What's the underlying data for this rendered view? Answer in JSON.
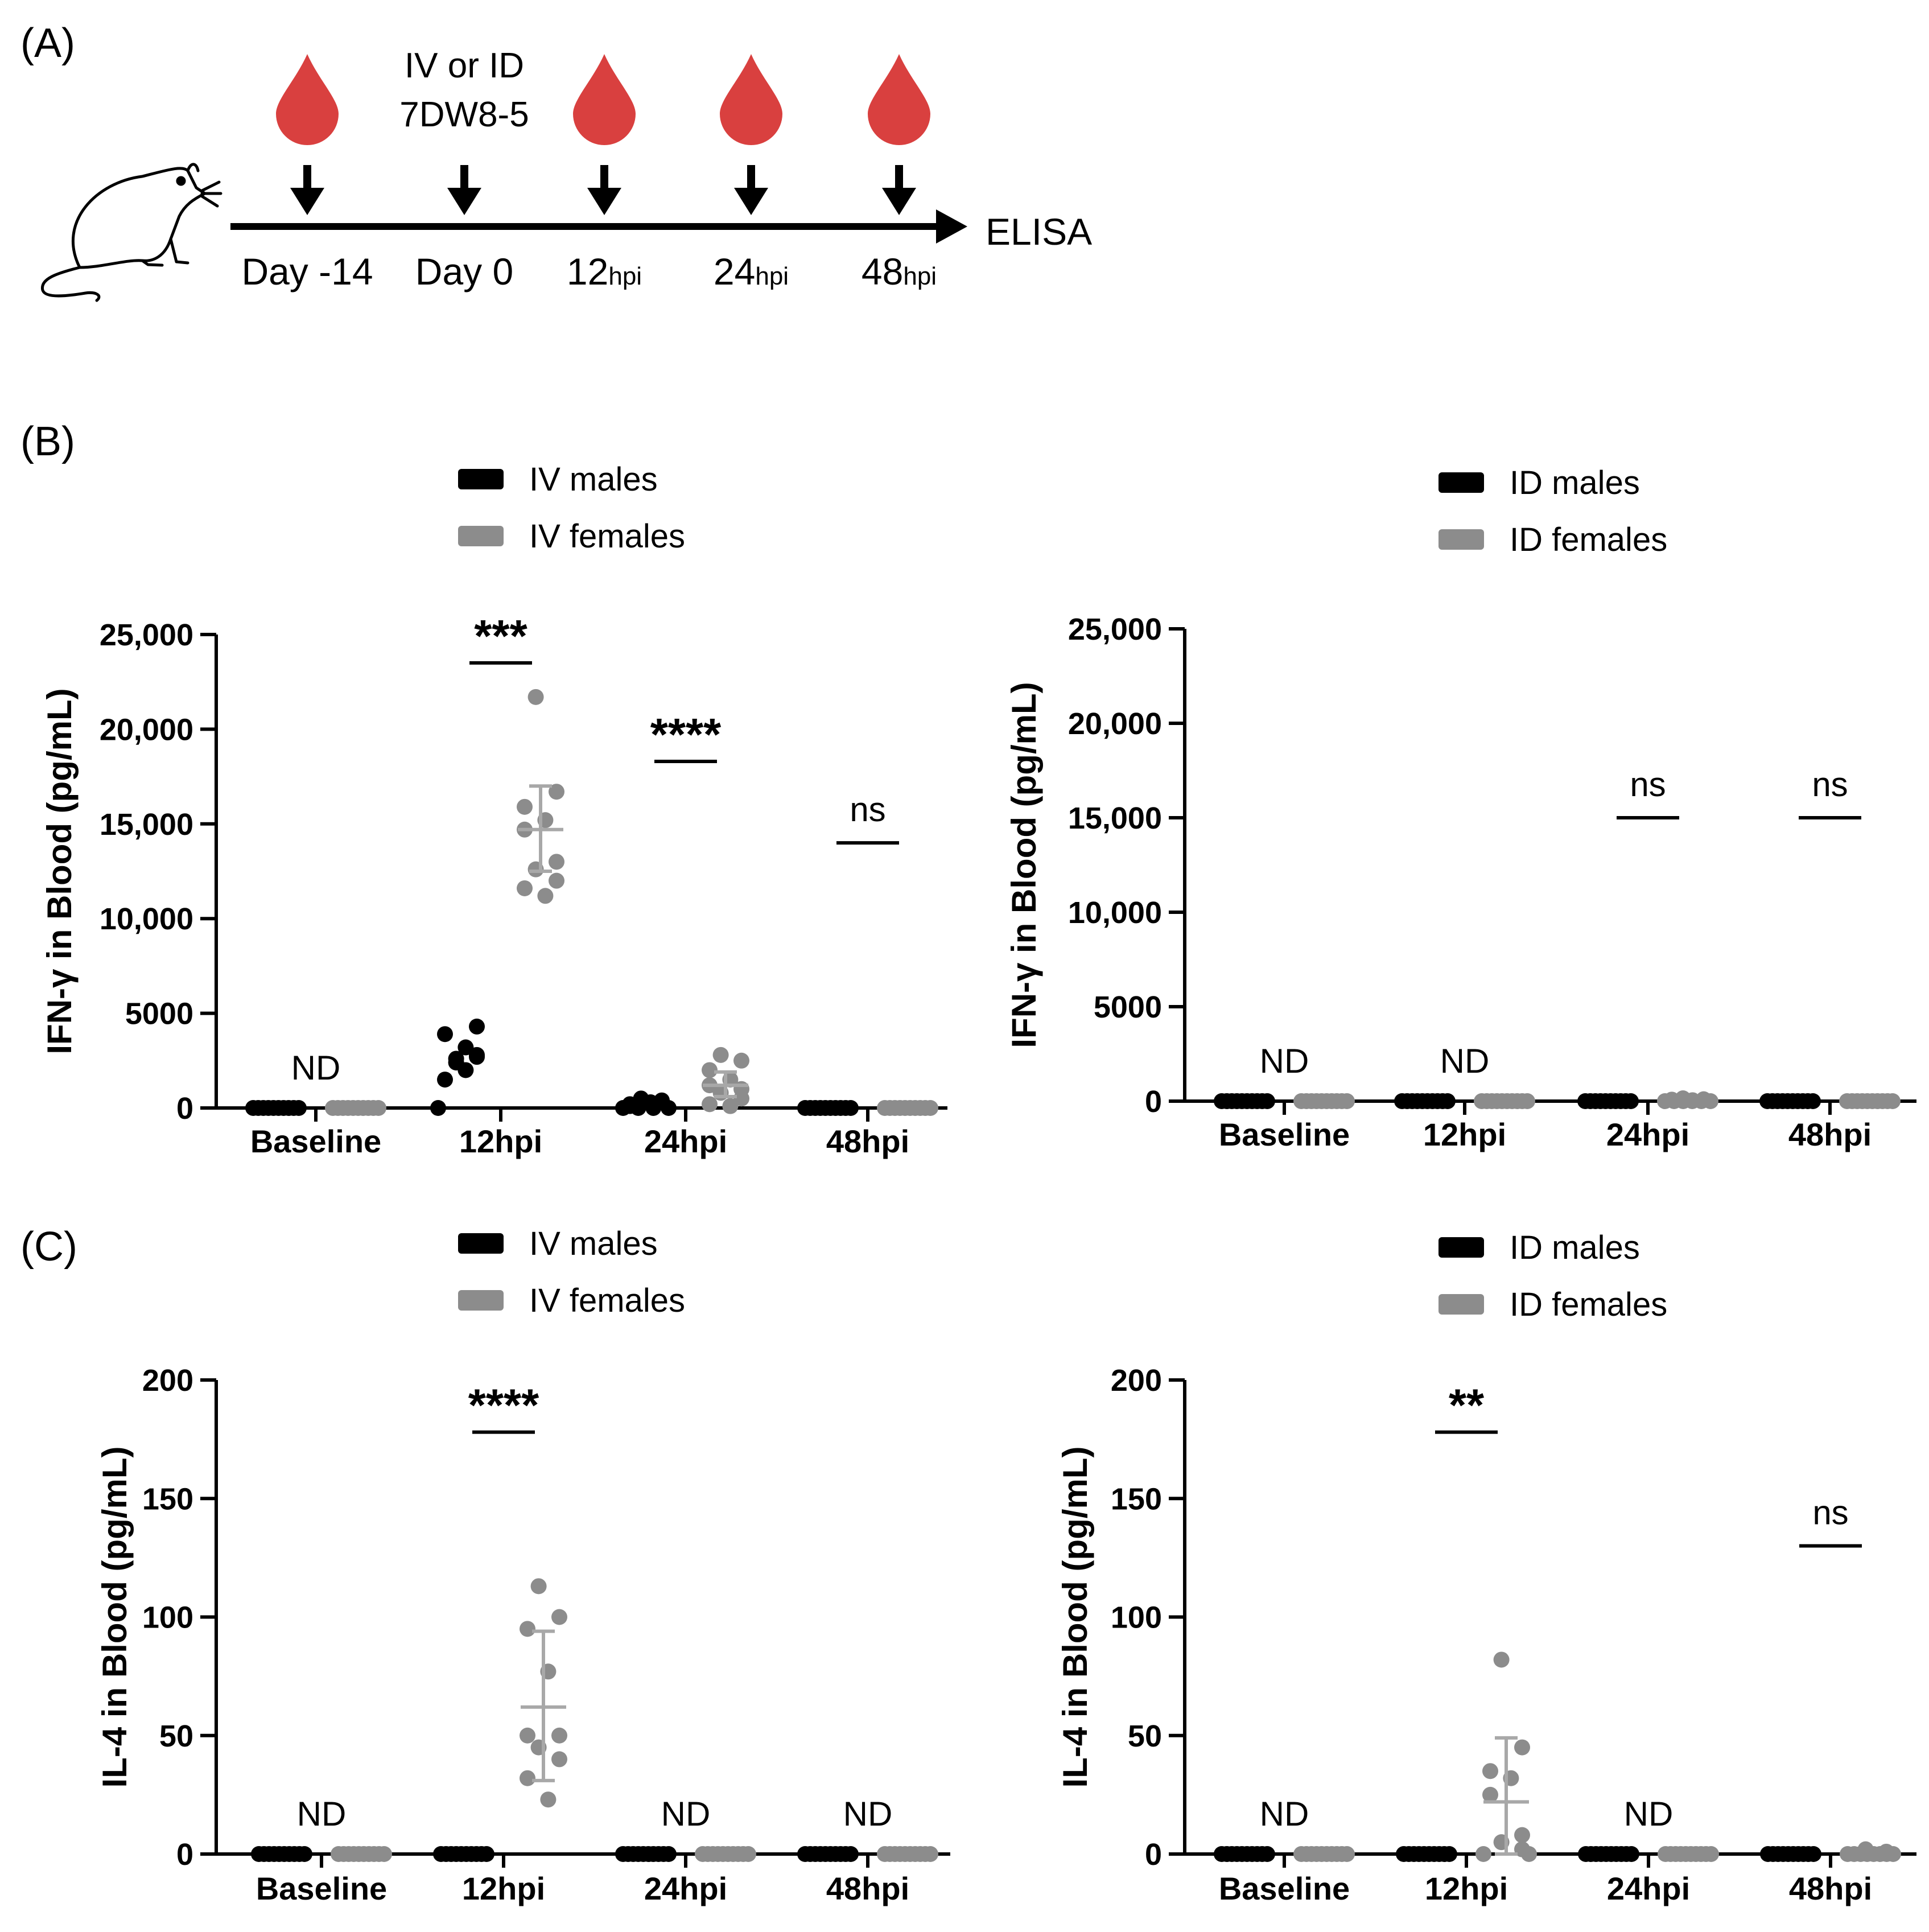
{
  "colors": {
    "male": "#000000",
    "female": "#8c8c8c",
    "drop": "#d9403f",
    "axis": "#000000"
  },
  "panelA": {
    "label": "(A)",
    "injection_line1": "IV or ID",
    "injection_line2": "7DW8-5",
    "timepoints": [
      {
        "main": "Day -14",
        "sub": ""
      },
      {
        "main": "Day 0",
        "sub": ""
      },
      {
        "main": "12",
        "sub": "hpi"
      },
      {
        "main": "24",
        "sub": "hpi"
      },
      {
        "main": "48",
        "sub": "hpi"
      }
    ],
    "endpoint": "ELISA",
    "icons": [
      "mouse-icon",
      "blood-drop-icon",
      "down-arrow-icon"
    ]
  },
  "panelB": {
    "label": "(B)"
  },
  "panelC": {
    "label": "(C)"
  },
  "chart_data": [
    {
      "id": "B-IV",
      "type": "scatter",
      "panel": "B",
      "legend": [
        "IV males",
        "IV females"
      ],
      "ylabel": "IFN-γ in Blood (pg/mL)",
      "xlabel": "",
      "categories": [
        "Baseline",
        "12hpi",
        "24hpi",
        "48hpi"
      ],
      "ylim": [
        0,
        25000
      ],
      "yticks": [
        0,
        5000,
        10000,
        15000,
        20000,
        25000
      ],
      "ytick_labels": [
        "0",
        "5000",
        "10,000",
        "15,000",
        "20,000",
        "25,000"
      ],
      "series": [
        {
          "name": "IV males",
          "values": [
            [
              0,
              0,
              0,
              0,
              0,
              0,
              0,
              0,
              0,
              0
            ],
            [
              2600,
              4300,
              3900,
              3200,
              1500,
              2700,
              2400,
              2800,
              0,
              2000
            ],
            [
              500,
              300,
              200,
              0,
              100,
              400,
              0,
              0,
              0,
              300
            ],
            [
              0,
              0,
              0,
              0,
              0,
              0,
              0,
              0,
              0,
              0
            ]
          ]
        },
        {
          "name": "IV females",
          "values": [
            [
              0,
              0,
              0,
              0,
              0,
              0,
              0,
              0,
              0,
              0
            ],
            [
              21700,
              16700,
              15900,
              15200,
              14700,
              13000,
              12600,
              12000,
              11600,
              11200
            ],
            [
              2800,
              2500,
              2000,
              1500,
              1200,
              1000,
              800,
              500,
              200,
              100
            ],
            [
              0,
              0,
              0,
              0,
              0,
              0,
              0,
              0,
              0,
              0
            ]
          ]
        }
      ],
      "female_error": [
        null,
        {
          "mean": 14700,
          "low": 12500,
          "high": 17000
        },
        {
          "mean": 1200,
          "low": 600,
          "high": 1900
        },
        null
      ],
      "annotations": [
        {
          "group": "Baseline",
          "text": "ND",
          "y": 1800,
          "bar": false
        },
        {
          "group": "12hpi",
          "text": "***",
          "y": 23500,
          "bar": true
        },
        {
          "group": "24hpi",
          "text": "****",
          "y": 18300,
          "bar": true
        },
        {
          "group": "48hpi",
          "text": "ns",
          "y": 14000,
          "bar": true
        }
      ]
    },
    {
      "id": "B-ID",
      "type": "scatter",
      "panel": "B",
      "legend": [
        "ID males",
        "ID females"
      ],
      "ylabel": "IFN-γ in Blood (pg/mL)",
      "xlabel": "",
      "categories": [
        "Baseline",
        "12hpi",
        "24hpi",
        "48hpi"
      ],
      "ylim": [
        0,
        25000
      ],
      "yticks": [
        0,
        5000,
        10000,
        15000,
        20000,
        25000
      ],
      "ytick_labels": [
        "0",
        "5000",
        "10,000",
        "15,000",
        "20,000",
        "25,000"
      ],
      "series": [
        {
          "name": "ID males",
          "values": [
            [
              0,
              0,
              0,
              0,
              0,
              0,
              0,
              0,
              0,
              0
            ],
            [
              0,
              0,
              0,
              0,
              0,
              0,
              0,
              0,
              0,
              0
            ],
            [
              0,
              0,
              0,
              0,
              0,
              0,
              0,
              0,
              0,
              0
            ],
            [
              0,
              0,
              0,
              0,
              0,
              0,
              0,
              0,
              0,
              0
            ]
          ]
        },
        {
          "name": "ID females",
          "values": [
            [
              0,
              0,
              0,
              0,
              0,
              0,
              0,
              0,
              0,
              0
            ],
            [
              0,
              0,
              0,
              0,
              0,
              0,
              0,
              0,
              0,
              0
            ],
            [
              150,
              100,
              80,
              50,
              0,
              0,
              0,
              0,
              0,
              0
            ],
            [
              0,
              0,
              0,
              0,
              0,
              0,
              0,
              0,
              0,
              0
            ]
          ]
        }
      ],
      "female_error": [
        null,
        null,
        null,
        null
      ],
      "annotations": [
        {
          "group": "Baseline",
          "text": "ND",
          "y": 1800,
          "bar": false
        },
        {
          "group": "12hpi",
          "text": "ND",
          "y": 1800,
          "bar": false
        },
        {
          "group": "24hpi",
          "text": "ns",
          "y": 15000,
          "bar": true
        },
        {
          "group": "48hpi",
          "text": "ns",
          "y": 15000,
          "bar": true
        }
      ]
    },
    {
      "id": "C-IV",
      "type": "scatter",
      "panel": "C",
      "legend": [
        "IV males",
        "IV females"
      ],
      "ylabel": "IL-4 in Blood (pg/mL)",
      "xlabel": "",
      "categories": [
        "Baseline",
        "12hpi",
        "24hpi",
        "48hpi"
      ],
      "ylim": [
        0,
        200
      ],
      "yticks": [
        0,
        50,
        100,
        150,
        200
      ],
      "ytick_labels": [
        "0",
        "50",
        "100",
        "150",
        "200"
      ],
      "series": [
        {
          "name": "IV males",
          "values": [
            [
              0,
              0,
              0,
              0,
              0,
              0,
              0,
              0,
              0,
              0
            ],
            [
              0,
              0,
              0,
              0,
              0,
              0,
              0,
              0,
              0,
              0
            ],
            [
              0,
              0,
              0,
              0,
              0,
              0,
              0,
              0,
              0,
              0
            ],
            [
              0,
              0,
              0,
              0,
              0,
              0,
              0,
              0,
              0,
              0
            ]
          ]
        },
        {
          "name": "IV females",
          "values": [
            [
              0,
              0,
              0,
              0,
              0,
              0,
              0,
              0,
              0,
              0
            ],
            [
              113,
              100,
              95,
              77,
              50,
              50,
              45,
              40,
              32,
              23
            ],
            [
              0,
              0,
              0,
              0,
              0,
              0,
              0,
              0,
              0,
              0
            ],
            [
              0,
              0,
              0,
              0,
              0,
              0,
              0,
              0,
              0,
              0
            ]
          ]
        }
      ],
      "female_error": [
        null,
        {
          "mean": 62,
          "low": 31,
          "high": 94
        },
        null,
        null
      ],
      "annotations": [
        {
          "group": "Baseline",
          "text": "ND",
          "y": 15,
          "bar": false
        },
        {
          "group": "12hpi",
          "text": "****",
          "y": 178,
          "bar": true
        },
        {
          "group": "24hpi",
          "text": "ND",
          "y": 15,
          "bar": false
        },
        {
          "group": "48hpi",
          "text": "ND",
          "y": 15,
          "bar": false
        }
      ]
    },
    {
      "id": "C-ID",
      "type": "scatter",
      "panel": "C",
      "legend": [
        "ID males",
        "ID females"
      ],
      "ylabel": "IL-4 in Blood (pg/mL)",
      "xlabel": "",
      "categories": [
        "Baseline",
        "12hpi",
        "24hpi",
        "48hpi"
      ],
      "ylim": [
        0,
        200
      ],
      "yticks": [
        0,
        50,
        100,
        150,
        200
      ],
      "ytick_labels": [
        "0",
        "50",
        "100",
        "150",
        "200"
      ],
      "series": [
        {
          "name": "ID males",
          "values": [
            [
              0,
              0,
              0,
              0,
              0,
              0,
              0,
              0,
              0,
              0
            ],
            [
              0,
              0,
              0,
              0,
              0,
              0,
              0,
              0,
              0,
              0
            ],
            [
              0,
              0,
              0,
              0,
              0,
              0,
              0,
              0,
              0,
              0
            ],
            [
              0,
              0,
              0,
              0,
              0,
              0,
              0,
              0,
              0,
              0
            ]
          ]
        },
        {
          "name": "ID females",
          "values": [
            [
              0,
              0,
              0,
              0,
              0,
              0,
              0,
              0,
              0,
              0
            ],
            [
              82,
              45,
              35,
              32,
              25,
              8,
              5,
              2,
              0,
              0
            ],
            [
              0,
              0,
              0,
              0,
              0,
              0,
              0,
              0,
              0,
              0
            ],
            [
              2,
              1,
              0,
              0,
              0,
              0,
              0,
              0,
              0,
              0
            ]
          ]
        }
      ],
      "female_error": [
        null,
        {
          "mean": 22,
          "low": 0,
          "high": 49
        },
        null,
        null
      ],
      "annotations": [
        {
          "group": "Baseline",
          "text": "ND",
          "y": 15,
          "bar": false
        },
        {
          "group": "12hpi",
          "text": "**",
          "y": 178,
          "bar": true
        },
        {
          "group": "24hpi",
          "text": "ND",
          "y": 15,
          "bar": false
        },
        {
          "group": "48hpi",
          "text": "ns",
          "y": 130,
          "bar": true
        }
      ]
    }
  ]
}
